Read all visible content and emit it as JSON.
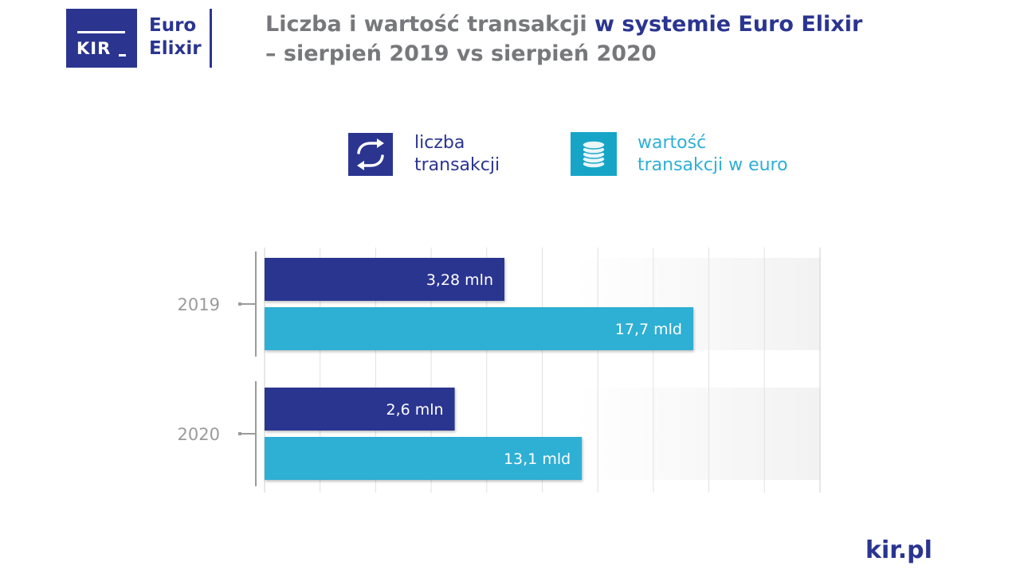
{
  "logo": {
    "mark": "KIR",
    "product_line1": "Euro",
    "product_line2": "Elixir"
  },
  "title": {
    "part1": "Liczba i wartość transakcji",
    "part2": " w systemie Euro Elixir",
    "line2": "– sierpień 2019 vs sierpień 2020"
  },
  "legend": [
    {
      "icon": "arrows-exchange-icon",
      "line1": "liczba",
      "line2": "transakcji",
      "color": "#2b3590"
    },
    {
      "icon": "coin-stack-icon",
      "line1": "wartość",
      "line2": "transakcji w euro",
      "color": "#2eafd4"
    }
  ],
  "chart_data": {
    "type": "bar",
    "orientation": "horizontal",
    "categories": [
      "2019",
      "2020"
    ],
    "series": [
      {
        "name": "liczba transakcji",
        "values": [
          3.28,
          2.6
        ],
        "labels": [
          "3,28 mln",
          "2,6 mln"
        ],
        "color": "#2b3590"
      },
      {
        "name": "wartość transakcji w euro",
        "values": [
          17.7,
          13.1
        ],
        "labels": [
          "17,7 mld",
          "13,1 mld"
        ],
        "color": "#2eafd4"
      }
    ],
    "grid": true,
    "legend": "top"
  },
  "footer": {
    "site": "kir.pl"
  }
}
